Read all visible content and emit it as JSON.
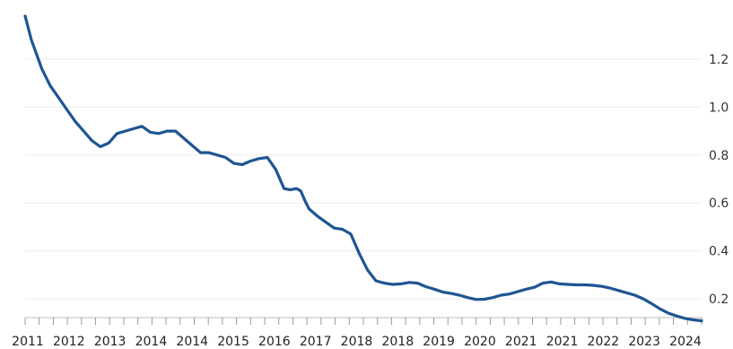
{
  "chart_data": {
    "type": "line",
    "title": "",
    "xlabel": "",
    "ylabel": "",
    "ylim": [
      0.1,
      1.35
    ],
    "yticks": [
      0.2,
      0.4,
      0.6,
      0.8,
      1.0,
      1.2
    ],
    "ytick_labels": [
      "0.2",
      "0.4",
      "0.6",
      "0.8",
      "1.0",
      "1.2"
    ],
    "y_axis_side": "right",
    "grid": "horizontal",
    "legend": "none",
    "xticks": [
      "2011",
      "2012",
      "2013",
      "2014",
      "2014",
      "2015",
      "2016",
      "2017",
      "2018",
      "2018",
      "2019",
      "2020",
      "2021",
      "2021",
      "2022",
      "2023",
      "2024"
    ],
    "line_color": "#1f5592",
    "series": [
      {
        "x": [
          0.0,
          0.15,
          0.4,
          0.6,
          0.8,
          1.0,
          1.2,
          1.4,
          1.6,
          1.8,
          2.0,
          2.2,
          2.4,
          2.6,
          2.8,
          3.0,
          3.2,
          3.4,
          3.6,
          3.8,
          4.0,
          4.2,
          4.4,
          4.6,
          4.8,
          5.0,
          5.2,
          5.4,
          5.6,
          5.8,
          6.0,
          6.2,
          6.35,
          6.5,
          6.6,
          6.7,
          6.8,
          7.0,
          7.2,
          7.4,
          7.6,
          7.8,
          8.0,
          8.2,
          8.4,
          8.6,
          8.8,
          9.0,
          9.2,
          9.4,
          9.6,
          9.8,
          10.0,
          10.2,
          10.4,
          10.6,
          10.8,
          11.0,
          11.2,
          11.4,
          11.6,
          11.8,
          12.0,
          12.2,
          12.4,
          12.6,
          12.8,
          13.0,
          13.2,
          13.4,
          13.6,
          13.8,
          14.0,
          14.2,
          14.4,
          14.6,
          14.8,
          15.0,
          15.2,
          15.4,
          15.6,
          15.8,
          16.0,
          16.2
        ],
        "y": [
          1.38,
          1.28,
          1.16,
          1.09,
          1.04,
          0.99,
          0.94,
          0.9,
          0.86,
          0.835,
          0.85,
          0.89,
          0.9,
          0.91,
          0.92,
          0.895,
          0.89,
          0.9,
          0.9,
          0.87,
          0.84,
          0.81,
          0.81,
          0.8,
          0.79,
          0.765,
          0.76,
          0.775,
          0.785,
          0.79,
          0.74,
          0.66,
          0.655,
          0.66,
          0.65,
          0.61,
          0.575,
          0.545,
          0.52,
          0.495,
          0.49,
          0.47,
          0.39,
          0.32,
          0.275,
          0.265,
          0.26,
          0.262,
          0.268,
          0.265,
          0.25,
          0.24,
          0.228,
          0.222,
          0.215,
          0.205,
          0.197,
          0.198,
          0.205,
          0.215,
          0.22,
          0.23,
          0.24,
          0.248,
          0.265,
          0.27,
          0.262,
          0.26,
          0.258,
          0.258,
          0.256,
          0.252,
          0.245,
          0.235,
          0.225,
          0.215,
          0.2,
          0.18,
          0.158,
          0.14,
          0.128,
          0.118,
          0.112,
          0.108
        ]
      }
    ]
  }
}
